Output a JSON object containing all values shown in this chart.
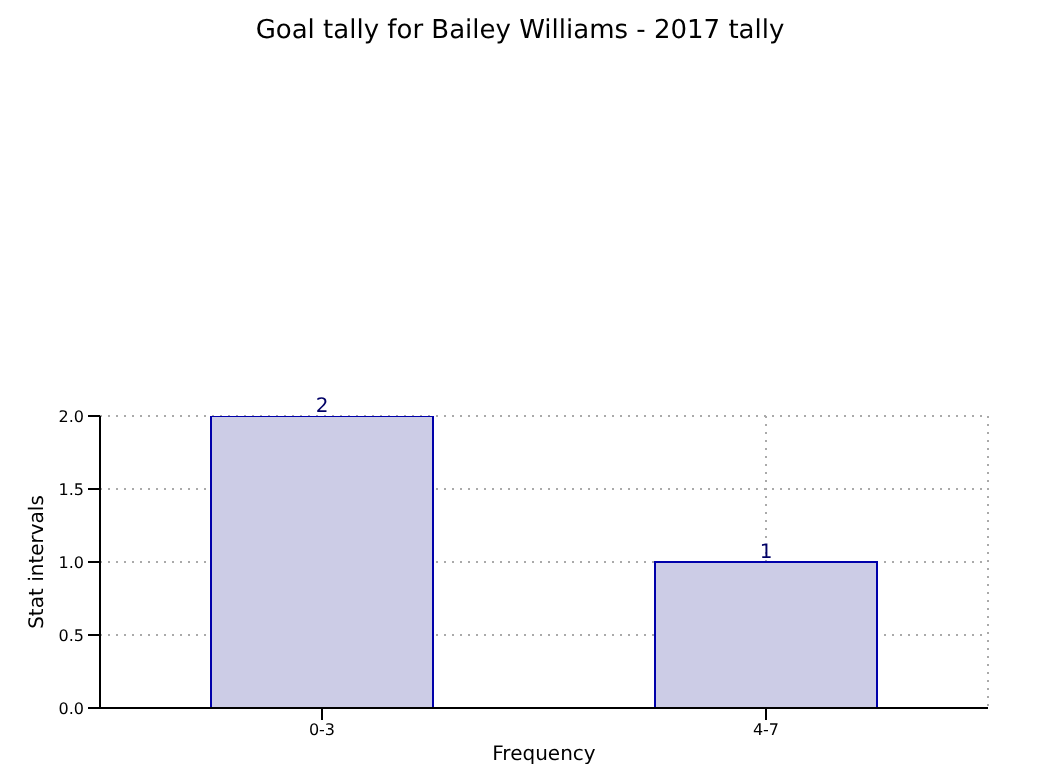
{
  "chart_data": {
    "type": "bar",
    "title": "Goal tally for Bailey Williams - 2017 tally",
    "xlabel": "Frequency",
    "ylabel": "Stat intervals",
    "categories": [
      "0-3",
      "4-7"
    ],
    "values": [
      2,
      1
    ],
    "color": "#cccce6",
    "ylim": [
      0,
      2
    ],
    "yticks": [
      {
        "value": 0,
        "label": "0.0"
      },
      {
        "value": 0.5,
        "label": "0.5"
      },
      {
        "value": 1,
        "label": "1.0"
      },
      {
        "value": 1.5,
        "label": "1.5"
      },
      {
        "value": 2,
        "label": "2.0"
      }
    ],
    "grid": true,
    "data_labels": true
  }
}
